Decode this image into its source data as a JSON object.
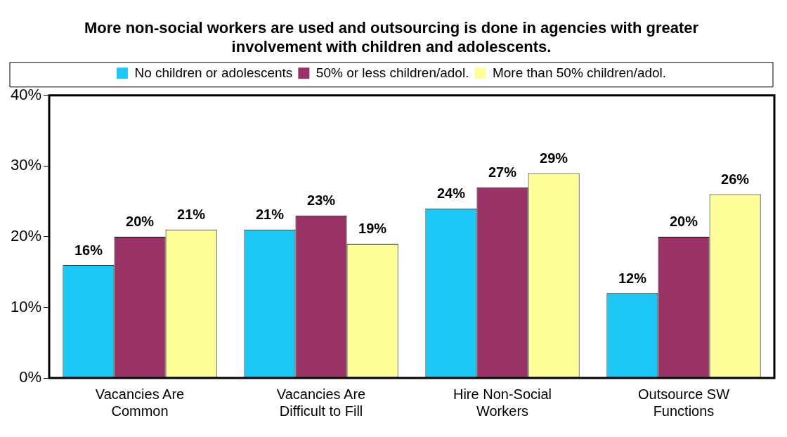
{
  "chart_data": {
    "type": "bar",
    "title": "More non-social workers are used and outsourcing is done in agencies with greater involvement with children and adolescents.",
    "categories": [
      "Vacancies Are Common",
      "Vacancies Are Difficult to Fill",
      "Hire Non-Social Workers",
      "Outsource SW Functions"
    ],
    "series": [
      {
        "name": "No children or adolescents",
        "color": "#1ec8f5",
        "values": [
          16,
          21,
          24,
          12
        ],
        "value_labels": [
          "16%",
          "21%",
          "24%",
          "12%"
        ]
      },
      {
        "name": "50% or less children/adol.",
        "color": "#993366",
        "values": [
          20,
          23,
          27,
          20
        ],
        "value_labels": [
          "20%",
          "23%",
          "27%",
          "20%"
        ]
      },
      {
        "name": "More than 50% children/adol.",
        "color": "#ffff99",
        "values": [
          21,
          19,
          29,
          26
        ],
        "value_labels": [
          "21%",
          "19%",
          "29%",
          "26%"
        ]
      }
    ],
    "ylim": [
      0,
      40
    ],
    "yticks": [
      {
        "value": 0,
        "label": "0%"
      },
      {
        "value": 10,
        "label": "10%"
      },
      {
        "value": 20,
        "label": "20%"
      },
      {
        "value": 30,
        "label": "30%"
      },
      {
        "value": 40,
        "label": "40%"
      }
    ],
    "grid": false,
    "legend": "top"
  }
}
